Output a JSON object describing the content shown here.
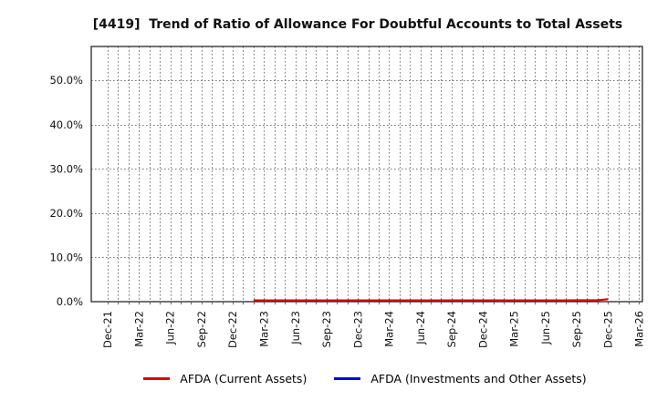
{
  "chart_data": {
    "type": "line",
    "title": "[4419]  Trend of Ratio of Allowance For Doubtful Accounts to Total Assets",
    "categories": [
      "Dec-21",
      "Mar-22",
      "Jun-22",
      "Sep-22",
      "Dec-22",
      "Mar-23",
      "Jun-23",
      "Sep-23",
      "Dec-23",
      "Mar-24",
      "Jun-24",
      "Sep-24",
      "Dec-24",
      "Mar-25",
      "Jun-25",
      "Sep-25",
      "Dec-25",
      "Mar-26"
    ],
    "y_ticks": [
      "0.0%",
      "10.0%",
      "20.0%",
      "30.0%",
      "40.0%",
      "50.0%"
    ],
    "ylim": [
      0,
      57.6
    ],
    "xlabel": "",
    "ylabel": "",
    "grid": "dotted",
    "legend_position": "bottom",
    "series": [
      {
        "name": "AFDA (Current Assets)",
        "color": "#e00000",
        "points": [
          {
            "x": "Feb-23",
            "y": 0.3
          },
          {
            "x": "May-23",
            "y": 0.3
          },
          {
            "x": "Aug-23",
            "y": 0.3
          },
          {
            "x": "Nov-23",
            "y": 0.3
          },
          {
            "x": "Feb-24",
            "y": 0.3
          },
          {
            "x": "May-24",
            "y": 0.3
          },
          {
            "x": "Aug-24",
            "y": 0.3
          },
          {
            "x": "Nov-24",
            "y": 0.3
          },
          {
            "x": "Feb-25",
            "y": 0.3
          },
          {
            "x": "May-25",
            "y": 0.3
          },
          {
            "x": "Aug-25",
            "y": 0.3
          },
          {
            "x": "Nov-25",
            "y": 0.32
          },
          {
            "x": "Dec-25",
            "y": 0.55
          }
        ]
      },
      {
        "name": "AFDA (Investments and Other Assets)",
        "color": "#0000dd",
        "points": []
      }
    ]
  }
}
